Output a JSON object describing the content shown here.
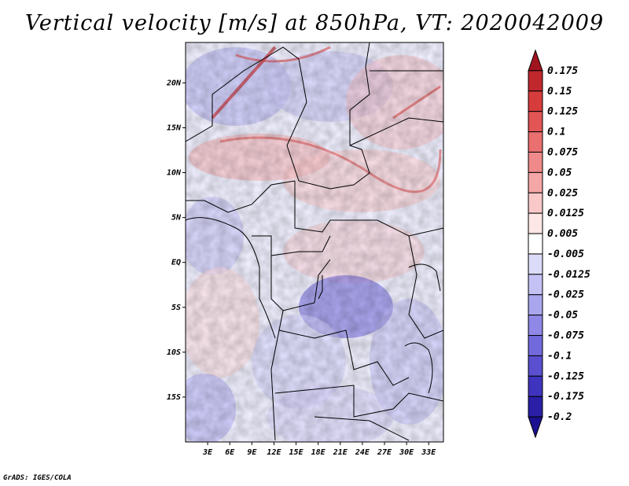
{
  "title": "Vertical velocity [m/s] at 850hPa, VT: 2020042009",
  "credit": "GrADS: IGES/COLA",
  "map": {
    "lat_labels": [
      "20N",
      "15N",
      "10N",
      "5N",
      "EQ",
      "5S",
      "10S",
      "15S"
    ],
    "lat_values": [
      20,
      15,
      10,
      5,
      0,
      -5,
      -10,
      -15
    ],
    "lon_labels": [
      "3E",
      "6E",
      "9E",
      "12E",
      "15E",
      "18E",
      "21E",
      "24E",
      "27E",
      "30E",
      "33E"
    ],
    "lon_values": [
      3,
      6,
      9,
      12,
      15,
      18,
      21,
      24,
      27,
      30,
      33
    ],
    "lon_range": [
      0,
      35
    ],
    "lat_range": [
      -20,
      24.5
    ]
  },
  "colorbar": {
    "labels": [
      "0.175",
      "0.15",
      "0.125",
      "0.1",
      "0.075",
      "0.05",
      "0.025",
      "0.0125",
      "0.005",
      "-0.005",
      "-0.0125",
      "-0.025",
      "-0.05",
      "-0.075",
      "-0.1",
      "-0.125",
      "-0.175",
      "-0.2"
    ],
    "colors": [
      "#a0141e",
      "#c0282d",
      "#d73c3c",
      "#e25555",
      "#ea6f6f",
      "#f08a8a",
      "#f5a6a6",
      "#f9c8c8",
      "#fde6e6",
      "#ffffff",
      "#dcdcf8",
      "#c4c2f4",
      "#aaa6ee",
      "#8f88e6",
      "#726adc",
      "#5a4fcf",
      "#3f34bd",
      "#2a1fa6",
      "#1a1090"
    ]
  }
}
